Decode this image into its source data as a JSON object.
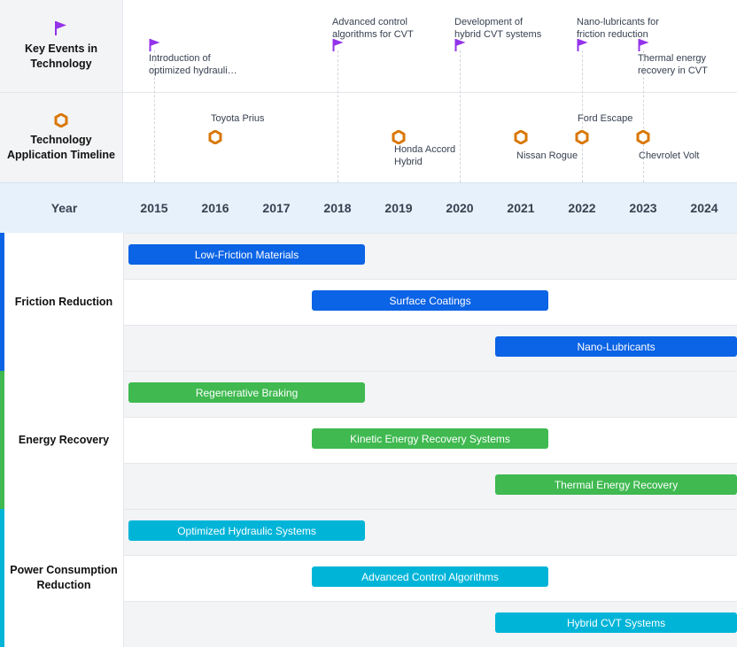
{
  "header": {
    "events_title": "Key Events in Technology",
    "apps_title": "Technology Application Timeline",
    "year_label": "Year"
  },
  "colors": {
    "flag": "#9333ea",
    "hex_icon": "#d97706",
    "friction": "#0b63e5",
    "energy": "#3fb950",
    "power": "#00b4d8"
  },
  "chart_data": {
    "type": "gantt",
    "years": [
      "2015",
      "2016",
      "2017",
      "2018",
      "2019",
      "2020",
      "2021",
      "2022",
      "2023",
      "2024"
    ],
    "key_events": [
      {
        "year": 2015.0,
        "text": "Introduction of optimized hydrauli…",
        "lines": [
          "Introduction of",
          "optimized hydrauli…"
        ]
      },
      {
        "year": 2018.0,
        "text": "Advanced control algorithms for CVT",
        "lines": [
          "Advanced control",
          "algorithms for CVT"
        ]
      },
      {
        "year": 2020.0,
        "text": "Development of hybrid CVT systems",
        "lines": [
          "Development of",
          "hybrid CVT systems"
        ]
      },
      {
        "year": 2022.0,
        "text": "Nano-lubricants for friction reduction",
        "lines": [
          "Nano-lubricants for",
          "friction reduction"
        ]
      },
      {
        "year": 2023.0,
        "text": "Thermal energy recovery in CVT",
        "lines": [
          "Thermal energy",
          "recovery in CVT"
        ]
      }
    ],
    "applications": [
      {
        "year": 2016.0,
        "text": "Toyota Prius",
        "lines": [
          "Toyota Prius"
        ],
        "label_pos": "above"
      },
      {
        "year": 2019.0,
        "text": "Honda Accord Hybrid",
        "lines": [
          "Honda Accord",
          "Hybrid"
        ],
        "label_pos": "below"
      },
      {
        "year": 2021.0,
        "text": "Nissan Rogue",
        "lines": [
          "Nissan Rogue"
        ],
        "label_pos": "below"
      },
      {
        "year": 2022.0,
        "text": "Ford Escape",
        "lines": [
          "Ford Escape"
        ],
        "label_pos": "above"
      },
      {
        "year": 2023.0,
        "text": "Chevrolet Volt",
        "lines": [
          "Chevrolet Volt"
        ],
        "label_pos": "below"
      }
    ],
    "groups": [
      {
        "name": "Friction Reduction",
        "color": "#0b63e5",
        "tasks": [
          {
            "name": "Low-Friction Materials",
            "start": 2015,
            "end": 2018.9
          },
          {
            "name": "Surface Coatings",
            "start": 2018,
            "end": 2021.9
          },
          {
            "name": "Nano-Lubricants",
            "start": 2021,
            "end": 2024.9
          }
        ]
      },
      {
        "name": "Energy Recovery",
        "color": "#3fb950",
        "tasks": [
          {
            "name": "Regenerative Braking",
            "start": 2015,
            "end": 2018.9
          },
          {
            "name": "Kinetic Energy Recovery Systems",
            "start": 2018,
            "end": 2021.9
          },
          {
            "name": "Thermal Energy Recovery",
            "start": 2021,
            "end": 2024.9
          }
        ]
      },
      {
        "name": "Power Consumption Reduction",
        "color": "#00b4d8",
        "tasks": [
          {
            "name": "Optimized Hydraulic Systems",
            "start": 2015,
            "end": 2018.9
          },
          {
            "name": "Advanced Control Algorithms",
            "start": 2018,
            "end": 2021.9
          },
          {
            "name": "Hybrid CVT Systems",
            "start": 2021,
            "end": 2024.9
          }
        ]
      }
    ]
  }
}
